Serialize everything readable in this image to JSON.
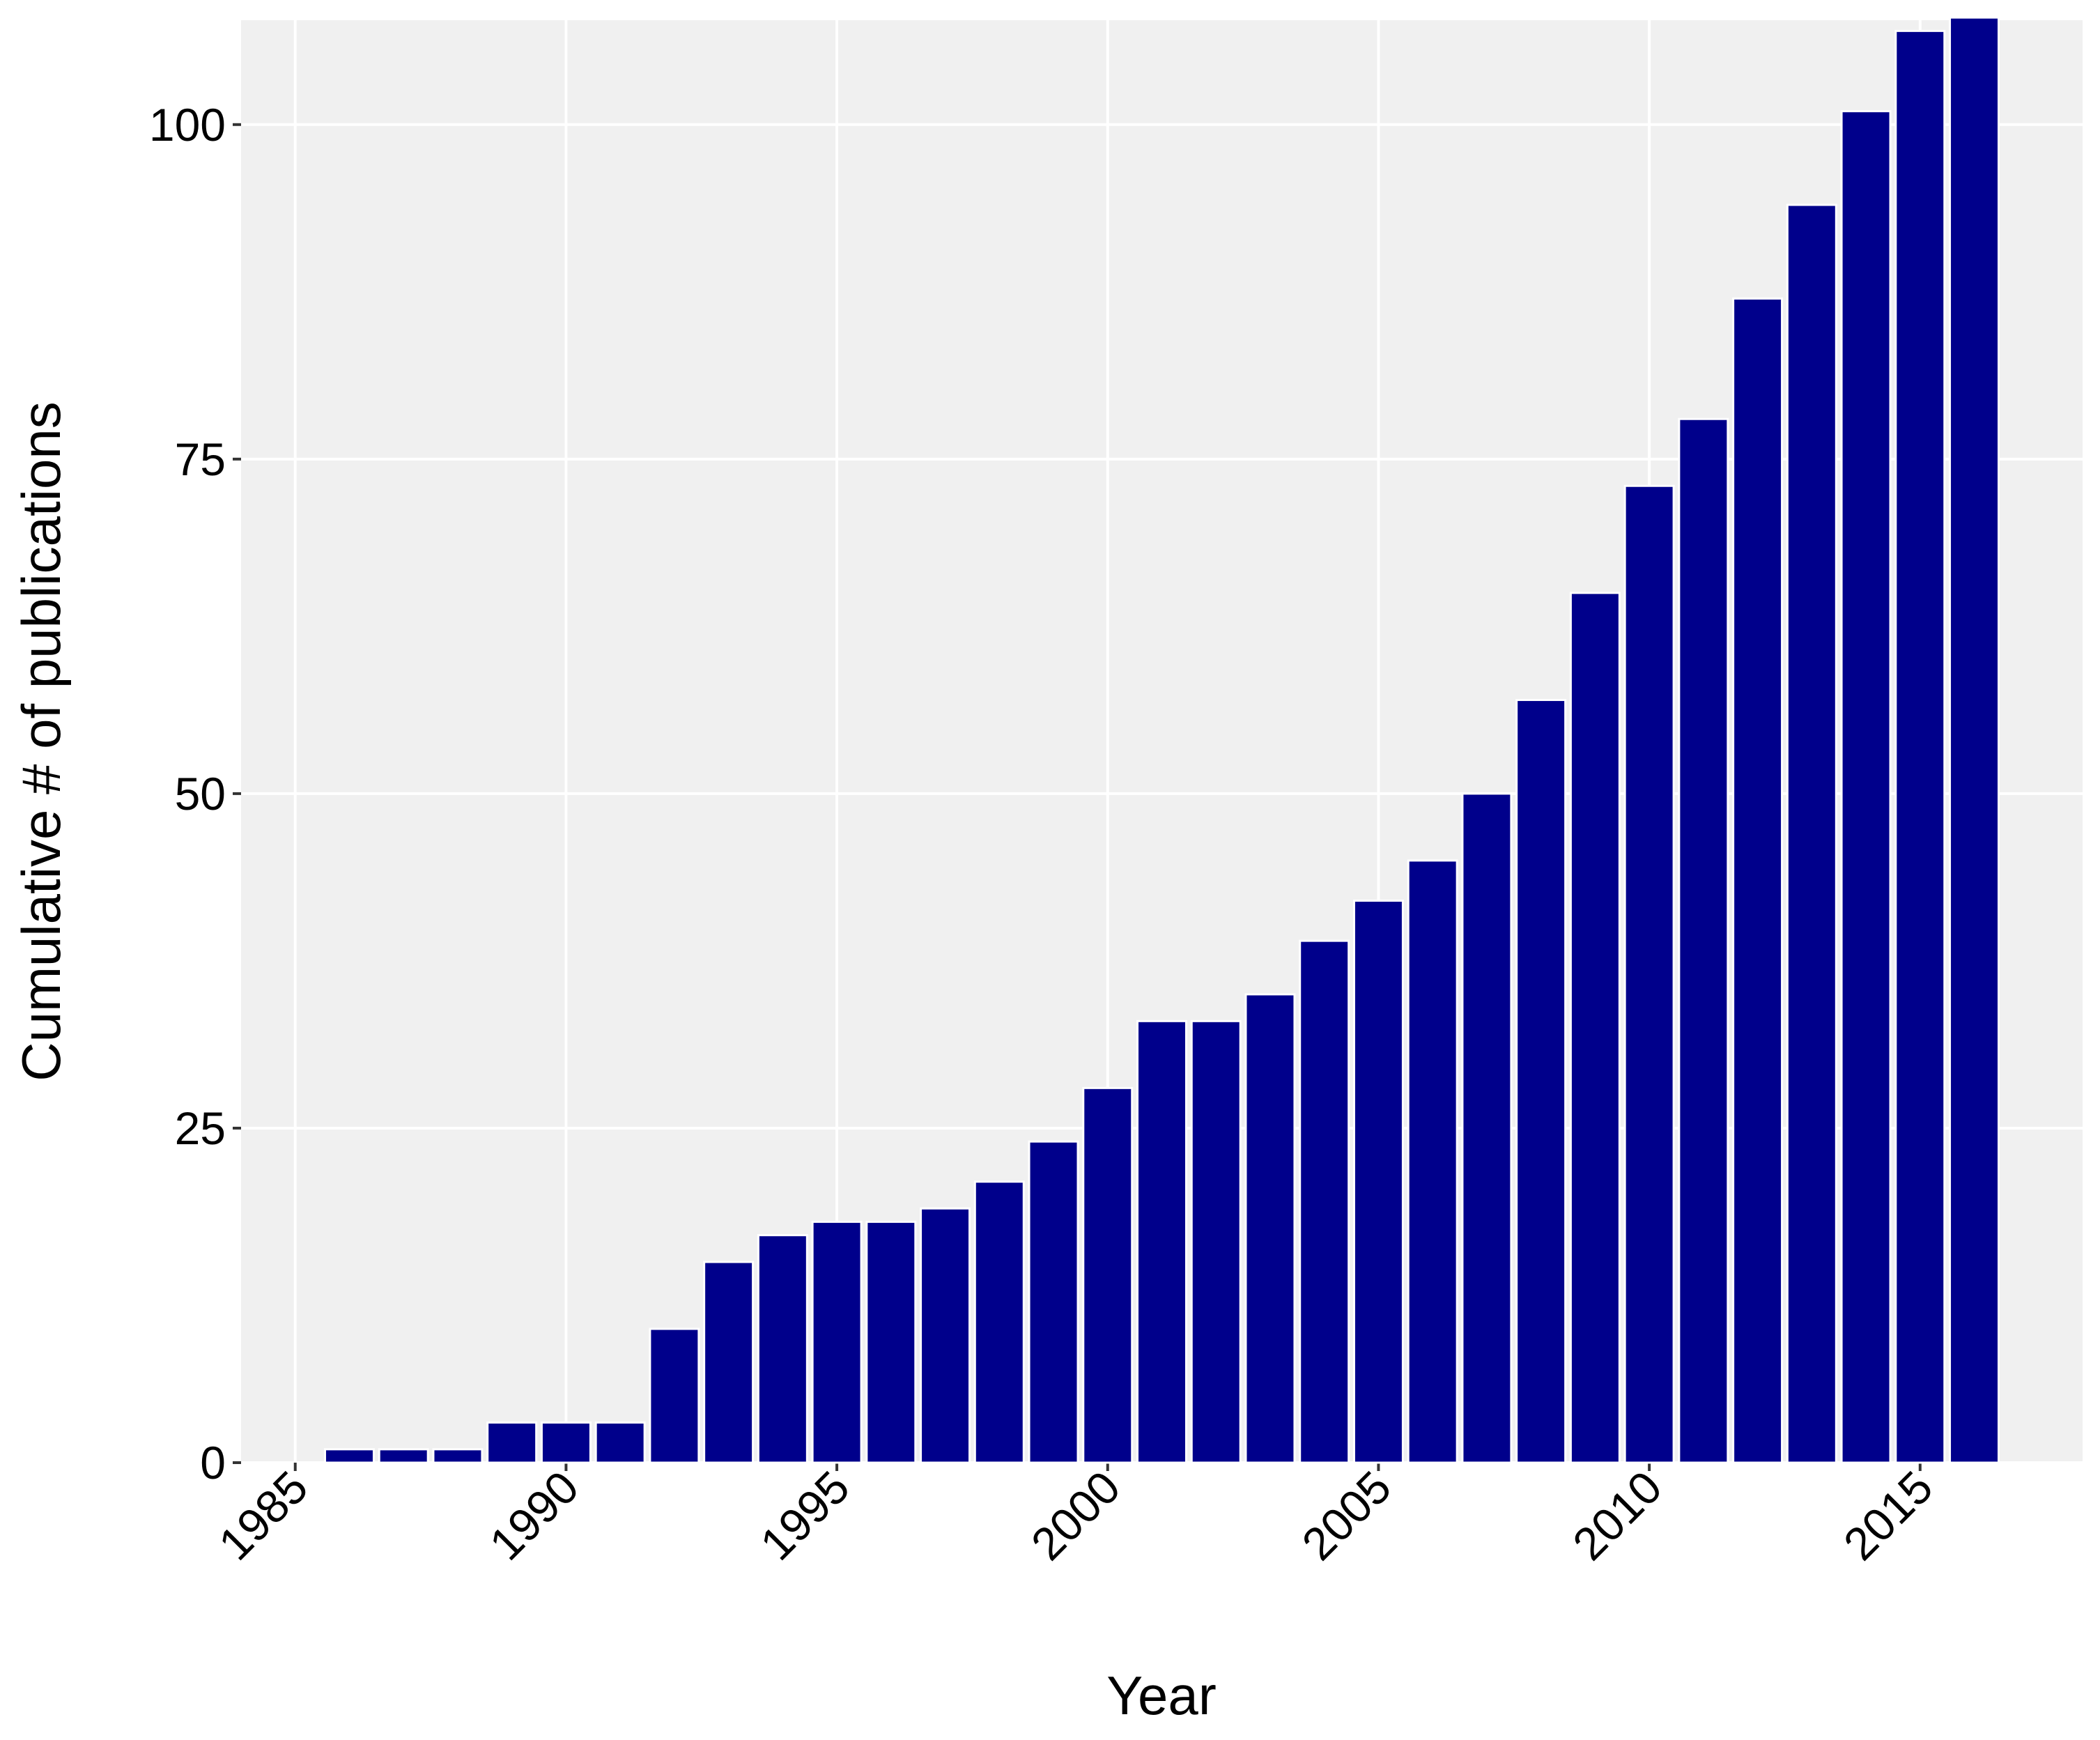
{
  "chart_data": {
    "type": "bar",
    "xlabel": "Year",
    "ylabel": "Cumulative # of publications",
    "x": [
      1986,
      1987,
      1988,
      1989,
      1990,
      1991,
      1992,
      1993,
      1994,
      1995,
      1996,
      1997,
      1998,
      1999,
      2000,
      2001,
      2002,
      2003,
      2004,
      2005,
      2006,
      2007,
      2008,
      2009,
      2010,
      2011,
      2012,
      2013,
      2014,
      2015,
      2016
    ],
    "values": [
      1,
      1,
      1,
      3,
      3,
      3,
      10,
      15,
      17,
      18,
      18,
      19,
      21,
      24,
      28,
      33,
      33,
      35,
      39,
      42,
      45,
      50,
      57,
      65,
      73,
      78,
      87,
      94,
      101,
      107,
      108
    ],
    "color": "#00008b",
    "xlim": [
      1984,
      2018
    ],
    "xticks": [
      1985,
      1990,
      1995,
      2000,
      2005,
      2010,
      2015
    ],
    "ylim": [
      0,
      107.8
    ],
    "yticks": [
      0,
      25,
      50,
      75,
      100
    ],
    "grid": true
  }
}
